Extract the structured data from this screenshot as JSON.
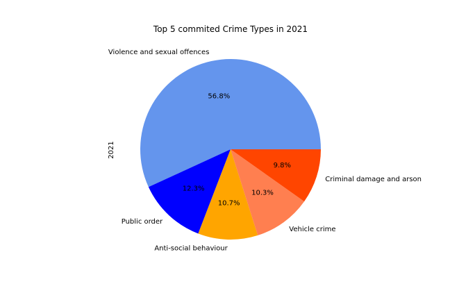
{
  "chart_data": {
    "type": "pie",
    "title": "Top 5 commited Crime Types in 2021",
    "ylabel": "2021",
    "start_angle_deg": 0,
    "direction": "counterclockwise",
    "slices": [
      {
        "label": "Violence and sexual offences",
        "pct_label": "56.8%",
        "value": 56.8,
        "color": "#6495ED"
      },
      {
        "label": "Public order",
        "pct_label": "12.3%",
        "value": 12.3,
        "color": "#0000FF"
      },
      {
        "label": "Anti-social behaviour",
        "pct_label": "10.7%",
        "value": 10.7,
        "color": "#FFA500"
      },
      {
        "label": "Vehicle crime",
        "pct_label": "10.3%",
        "value": 10.3,
        "color": "#FF7F50"
      },
      {
        "label": "Criminal damage and arson",
        "pct_label": "9.8%",
        "value": 9.8,
        "color": "#FF4500"
      }
    ]
  }
}
